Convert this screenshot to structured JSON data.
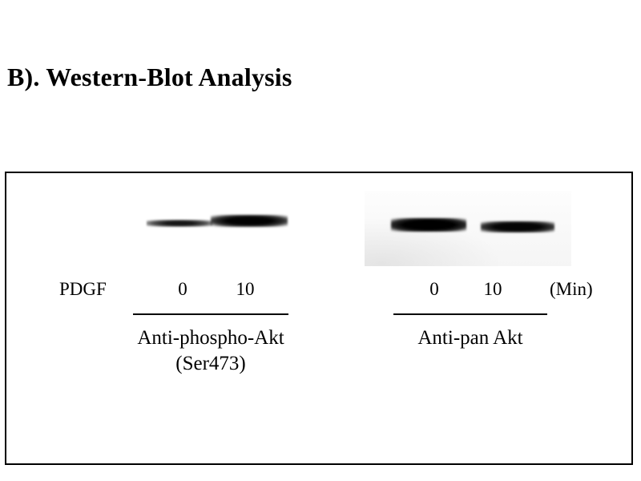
{
  "figure": {
    "title": "B). Western-Blot Analysis",
    "pdgf_label": "PDGF",
    "min_label": "(Min)",
    "left_blot": {
      "antibody": "Anti-phospho-Akt",
      "site": "(Ser473)",
      "lanes": [
        "0",
        "10"
      ],
      "bands": [
        {
          "lane": "0",
          "intensity": "weak"
        },
        {
          "lane": "10",
          "intensity": "strong"
        }
      ]
    },
    "right_blot": {
      "antibody": "Anti-pan Akt",
      "lanes": [
        "0",
        "10"
      ],
      "bands": [
        {
          "lane": "0",
          "intensity": "strong"
        },
        {
          "lane": "10",
          "intensity": "strong"
        }
      ]
    },
    "colors": {
      "band": "#0b0b0b",
      "panel_border": "#000000",
      "background": "#ffffff"
    }
  }
}
